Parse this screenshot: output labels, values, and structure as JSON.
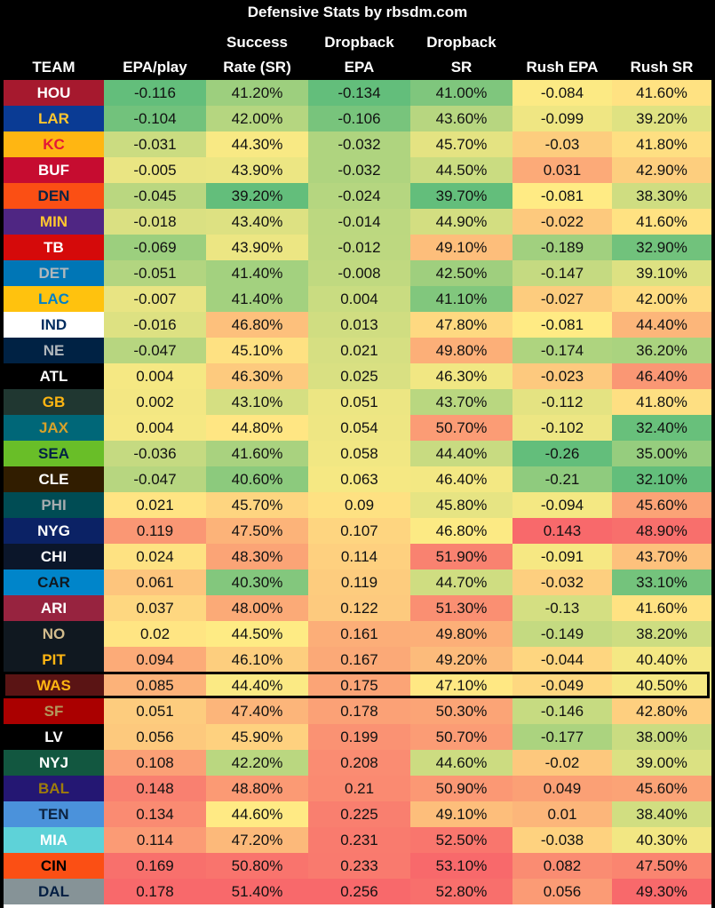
{
  "chart_data": {
    "type": "table",
    "title": "Defensive Stats by rbsdm.com",
    "columns": [
      [
        "TEAM"
      ],
      [
        "EPA/play"
      ],
      [
        "Success",
        "Rate (SR)"
      ],
      [
        "Dropback",
        "EPA"
      ],
      [
        "Dropback",
        "SR"
      ],
      [
        "Rush EPA"
      ],
      [
        "Rush SR"
      ]
    ],
    "highlight_team": "WAS",
    "rows": [
      {
        "team": "HOU",
        "team_bg": "#A6192E",
        "team_fg": "#ffffff",
        "values": [
          "-0.116",
          "41.20%",
          "-0.134",
          "41.00%",
          "-0.084",
          "41.60%"
        ]
      },
      {
        "team": "LAR",
        "team_bg": "#0A3B94",
        "team_fg": "#FFC62F",
        "values": [
          "-0.104",
          "42.00%",
          "-0.106",
          "43.60%",
          "-0.099",
          "39.20%"
        ]
      },
      {
        "team": "KC",
        "team_bg": "#FFB612",
        "team_fg": "#E31837",
        "values": [
          "-0.031",
          "44.30%",
          "-0.032",
          "45.70%",
          "-0.03",
          "41.80%"
        ]
      },
      {
        "team": "BUF",
        "team_bg": "#C60C30",
        "team_fg": "#ffffff",
        "values": [
          "-0.005",
          "43.90%",
          "-0.032",
          "44.50%",
          "0.031",
          "42.90%"
        ]
      },
      {
        "team": "DEN",
        "team_bg": "#FB4F14",
        "team_fg": "#0A2343",
        "values": [
          "-0.045",
          "39.20%",
          "-0.024",
          "39.70%",
          "-0.081",
          "38.30%"
        ]
      },
      {
        "team": "MIN",
        "team_bg": "#4F2683",
        "team_fg": "#FFC62F",
        "values": [
          "-0.018",
          "43.40%",
          "-0.014",
          "44.90%",
          "-0.022",
          "41.60%"
        ]
      },
      {
        "team": "TB",
        "team_bg": "#D50A0A",
        "team_fg": "#ffffff",
        "values": [
          "-0.069",
          "43.90%",
          "-0.012",
          "49.10%",
          "-0.189",
          "32.90%"
        ]
      },
      {
        "team": "DET",
        "team_bg": "#0076B6",
        "team_fg": "#B0B7BC",
        "values": [
          "-0.051",
          "41.40%",
          "-0.008",
          "42.50%",
          "-0.147",
          "39.10%"
        ]
      },
      {
        "team": "LAC",
        "team_bg": "#FFC20E",
        "team_fg": "#0080C6",
        "values": [
          "-0.007",
          "41.40%",
          "0.004",
          "41.10%",
          "-0.027",
          "42.00%"
        ]
      },
      {
        "team": "IND",
        "team_bg": "#ffffff",
        "team_fg": "#002C5F",
        "values": [
          "-0.016",
          "46.80%",
          "0.013",
          "47.80%",
          "-0.081",
          "44.40%"
        ]
      },
      {
        "team": "NE",
        "team_bg": "#002244",
        "team_fg": "#B0B7BC",
        "values": [
          "-0.047",
          "45.10%",
          "0.021",
          "49.80%",
          "-0.174",
          "36.20%"
        ]
      },
      {
        "team": "ATL",
        "team_bg": "#000000",
        "team_fg": "#ffffff",
        "values": [
          "0.004",
          "46.30%",
          "0.025",
          "46.30%",
          "-0.023",
          "46.40%"
        ]
      },
      {
        "team": "GB",
        "team_bg": "#203731",
        "team_fg": "#FFB612",
        "values": [
          "0.002",
          "43.10%",
          "0.051",
          "43.70%",
          "-0.112",
          "41.80%"
        ]
      },
      {
        "team": "JAX",
        "team_bg": "#006778",
        "team_fg": "#D7A22A",
        "values": [
          "0.004",
          "44.80%",
          "0.054",
          "50.70%",
          "-0.102",
          "32.40%"
        ]
      },
      {
        "team": "SEA",
        "team_bg": "#69BE28",
        "team_fg": "#002244",
        "values": [
          "-0.036",
          "41.60%",
          "0.058",
          "44.40%",
          "-0.26",
          "35.00%"
        ]
      },
      {
        "team": "CLE",
        "team_bg": "#311D00",
        "team_fg": "#ffffff",
        "values": [
          "-0.047",
          "40.60%",
          "0.063",
          "46.40%",
          "-0.21",
          "32.10%"
        ]
      },
      {
        "team": "PHI",
        "team_bg": "#004C54",
        "team_fg": "#A5ACAF",
        "values": [
          "0.021",
          "45.70%",
          "0.09",
          "45.80%",
          "-0.094",
          "45.60%"
        ]
      },
      {
        "team": "NYG",
        "team_bg": "#0B2265",
        "team_fg": "#ffffff",
        "values": [
          "0.119",
          "47.50%",
          "0.107",
          "46.80%",
          "0.143",
          "48.90%"
        ]
      },
      {
        "team": "CHI",
        "team_bg": "#0B162A",
        "team_fg": "#ffffff",
        "values": [
          "0.024",
          "48.30%",
          "0.114",
          "51.90%",
          "-0.091",
          "43.70%"
        ]
      },
      {
        "team": "CAR",
        "team_bg": "#0085CA",
        "team_fg": "#101820",
        "values": [
          "0.061",
          "40.30%",
          "0.119",
          "44.70%",
          "-0.032",
          "33.10%"
        ]
      },
      {
        "team": "ARI",
        "team_bg": "#97233F",
        "team_fg": "#ffffff",
        "values": [
          "0.037",
          "48.00%",
          "0.122",
          "51.30%",
          "-0.13",
          "41.60%"
        ]
      },
      {
        "team": "NO",
        "team_bg": "#101820",
        "team_fg": "#D3BC8D",
        "values": [
          "0.02",
          "44.50%",
          "0.161",
          "49.80%",
          "-0.149",
          "38.20%"
        ]
      },
      {
        "team": "PIT",
        "team_bg": "#101820",
        "team_fg": "#FFB612",
        "values": [
          "0.094",
          "46.10%",
          "0.167",
          "49.20%",
          "-0.044",
          "40.40%"
        ]
      },
      {
        "team": "WAS",
        "team_bg": "#5A1414",
        "team_fg": "#FFB612",
        "values": [
          "0.085",
          "44.40%",
          "0.175",
          "47.10%",
          "-0.049",
          "40.50%"
        ]
      },
      {
        "team": "SF",
        "team_bg": "#AA0000",
        "team_fg": "#B3995D",
        "values": [
          "0.051",
          "47.40%",
          "0.178",
          "50.30%",
          "-0.146",
          "42.80%"
        ]
      },
      {
        "team": "LV",
        "team_bg": "#000000",
        "team_fg": "#ffffff",
        "values": [
          "0.056",
          "45.90%",
          "0.199",
          "50.70%",
          "-0.177",
          "38.00%"
        ]
      },
      {
        "team": "NYJ",
        "team_bg": "#125740",
        "team_fg": "#ffffff",
        "values": [
          "0.108",
          "42.20%",
          "0.208",
          "44.60%",
          "-0.02",
          "39.00%"
        ]
      },
      {
        "team": "BAL",
        "team_bg": "#241773",
        "team_fg": "#9E7C0C",
        "values": [
          "0.148",
          "48.80%",
          "0.21",
          "50.90%",
          "0.049",
          "45.60%"
        ]
      },
      {
        "team": "TEN",
        "team_bg": "#4B92DB",
        "team_fg": "#0C2340",
        "values": [
          "0.134",
          "44.60%",
          "0.225",
          "49.10%",
          "0.01",
          "38.40%"
        ]
      },
      {
        "team": "MIA",
        "team_bg": "#5ED2D8",
        "team_fg": "#ffffff",
        "values": [
          "0.114",
          "47.20%",
          "0.231",
          "52.50%",
          "-0.038",
          "40.30%"
        ]
      },
      {
        "team": "CIN",
        "team_bg": "#FB4F14",
        "team_fg": "#000000",
        "values": [
          "0.169",
          "50.80%",
          "0.233",
          "53.10%",
          "0.082",
          "47.50%"
        ]
      },
      {
        "team": "DAL",
        "team_bg": "#869397",
        "team_fg": "#041E42",
        "values": [
          "0.178",
          "51.40%",
          "0.256",
          "52.80%",
          "0.056",
          "49.30%"
        ]
      }
    ],
    "color_scale": {
      "good": "#63BE7B",
      "mid": "#FFEB84",
      "bad": "#F8696B"
    }
  }
}
